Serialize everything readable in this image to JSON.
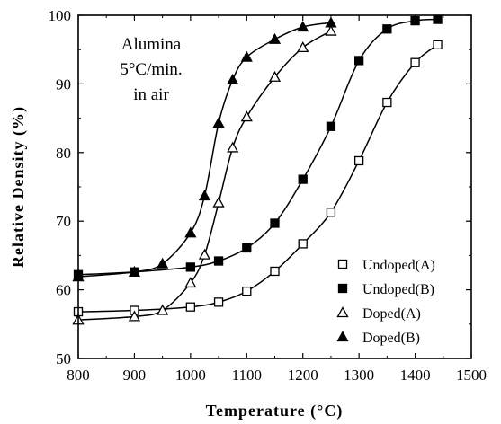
{
  "chart_data": {
    "type": "scatter",
    "xlabel": "Temperature  (°C)",
    "ylabel": "Relative  Density  (%)",
    "xlim": [
      800,
      1500
    ],
    "ylim": [
      50,
      100
    ],
    "xticks": [
      800,
      900,
      1000,
      1100,
      1200,
      1300,
      1400,
      1500
    ],
    "yticks": [
      50,
      60,
      70,
      80,
      90,
      100
    ],
    "annotation": [
      "Alumina",
      "5°C/min.",
      "in air"
    ],
    "legend_position": "bottom-right",
    "series": [
      {
        "name": "Undoped(A)",
        "marker": "open-square",
        "x": [
          800,
          900,
          1000,
          1050,
          1100,
          1150,
          1200,
          1250,
          1300,
          1350,
          1400,
          1440
        ],
        "y": [
          56.8,
          57.0,
          57.5,
          58.2,
          59.8,
          62.7,
          66.7,
          71.3,
          78.8,
          87.3,
          93.1,
          95.7
        ]
      },
      {
        "name": "Undoped(B)",
        "marker": "filled-square",
        "x": [
          800,
          900,
          1000,
          1050,
          1100,
          1150,
          1200,
          1250,
          1300,
          1350,
          1400,
          1440
        ],
        "y": [
          62.2,
          62.6,
          63.3,
          64.2,
          66.1,
          69.7,
          76.1,
          83.8,
          93.4,
          98.0,
          99.2,
          99.4
        ]
      },
      {
        "name": "Doped(A)",
        "marker": "open-triangle",
        "x": [
          800,
          900,
          950,
          1000,
          1025,
          1050,
          1075,
          1100,
          1150,
          1200,
          1250
        ],
        "y": [
          55.6,
          56.1,
          57.0,
          61.0,
          65.1,
          72.7,
          80.7,
          85.2,
          91.0,
          95.3,
          97.7
        ]
      },
      {
        "name": "Doped(B)",
        "marker": "filled-triangle",
        "x": [
          800,
          900,
          950,
          1000,
          1025,
          1050,
          1075,
          1100,
          1150,
          1200,
          1250
        ],
        "y": [
          61.9,
          62.6,
          63.8,
          68.3,
          73.7,
          84.3,
          90.6,
          93.9,
          96.5,
          98.3,
          98.9
        ]
      }
    ]
  }
}
